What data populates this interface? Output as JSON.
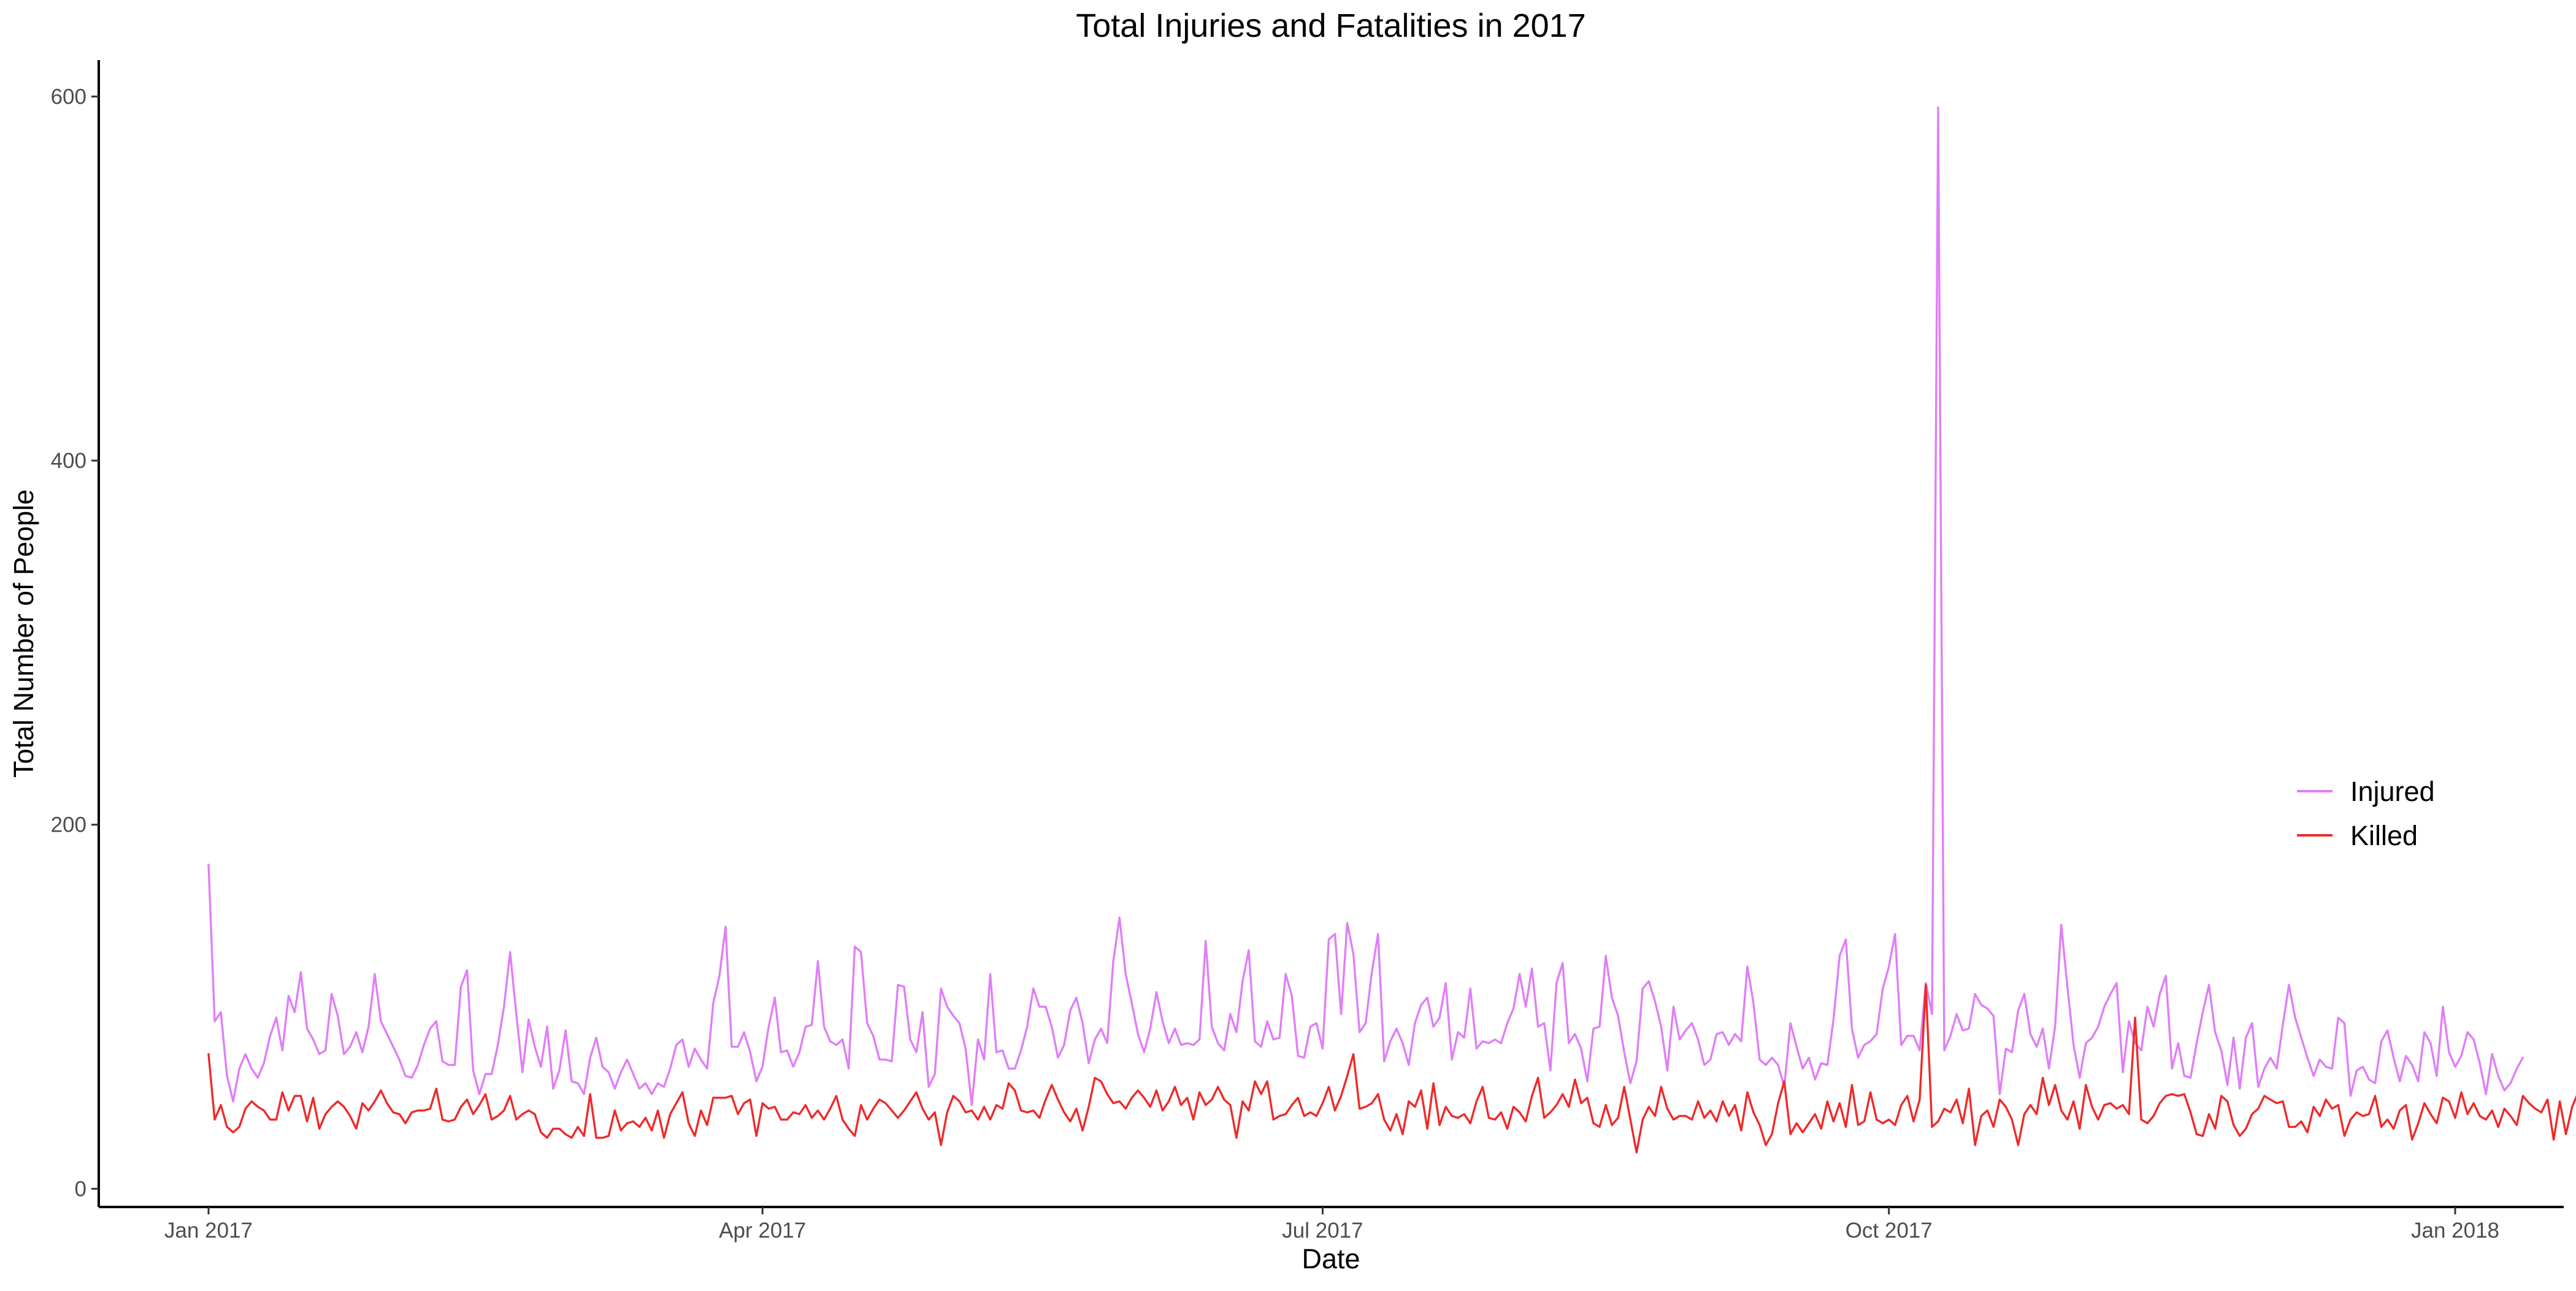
{
  "chart_data": {
    "type": "line",
    "title": "Total Injuries and Fatalities in 2017",
    "xlabel": "Date",
    "ylabel": "Total Number of People",
    "x_axis": {
      "type": "date",
      "range": [
        "2017-01-01",
        "2018-01-01"
      ],
      "ticks": [
        {
          "value": "2017-01-01",
          "label": "Jan 2017"
        },
        {
          "value": "2017-04-01",
          "label": "Apr 2017"
        },
        {
          "value": "2017-07-01",
          "label": "Jul 2017"
        },
        {
          "value": "2017-10-01",
          "label": "Oct 2017"
        },
        {
          "value": "2018-01-01",
          "label": "Jan 2018"
        }
      ]
    },
    "y_axis": {
      "range": [
        -10,
        620
      ],
      "ticks": [
        {
          "value": 0,
          "label": "0"
        },
        {
          "value": 200,
          "label": "200"
        },
        {
          "value": 400,
          "label": "400"
        },
        {
          "value": 600,
          "label": "600"
        }
      ]
    },
    "grid": false,
    "legend_position": "right",
    "x_start": "2017-01-01",
    "series": [
      {
        "name": "Injured",
        "color": "#e07ef7",
        "values": [
          178,
          92,
          97,
          62,
          48,
          66,
          74,
          66,
          61,
          69,
          84,
          94,
          76,
          106,
          97,
          119,
          88,
          82,
          74,
          76,
          107,
          95,
          74,
          78,
          86,
          75,
          89,
          118,
          92,
          85,
          78,
          71,
          62,
          61,
          68,
          79,
          88,
          92,
          70,
          68,
          68,
          111,
          120,
          65,
          52,
          63,
          63,
          79,
          100,
          130,
          96,
          64,
          93,
          78,
          67,
          89,
          55,
          65,
          87,
          59,
          58,
          52,
          72,
          83,
          67,
          64,
          55,
          64,
          71,
          63,
          55,
          58,
          52,
          58,
          56,
          66,
          79,
          82,
          67,
          77,
          71,
          66,
          102,
          117,
          144,
          78,
          78,
          86,
          75,
          59,
          67,
          89,
          105,
          75,
          76,
          67,
          75,
          89,
          90,
          125,
          89,
          81,
          79,
          82,
          66,
          133,
          130,
          91,
          84,
          71,
          71,
          70,
          112,
          111,
          82,
          75,
          97,
          56,
          63,
          110,
          100,
          95,
          91,
          77,
          46,
          82,
          71,
          118,
          75,
          76,
          66,
          66,
          76,
          89,
          110,
          100,
          100,
          89,
          72,
          79,
          98,
          105,
          91,
          69,
          82,
          88,
          80,
          125,
          149,
          118,
          102,
          85,
          75,
          88,
          108,
          92,
          80,
          88,
          79,
          80,
          79,
          82,
          136,
          89,
          80,
          76,
          96,
          86,
          114,
          131,
          81,
          78,
          92,
          82,
          83,
          118,
          106,
          73,
          72,
          89,
          91,
          77,
          137,
          140,
          96,
          146,
          129,
          86,
          91,
          119,
          140,
          70,
          81,
          88,
          80,
          68,
          91,
          101,
          105,
          89,
          94,
          113,
          71,
          86,
          83,
          110,
          77,
          81,
          80,
          82,
          80,
          91,
          99,
          118,
          100,
          121,
          89,
          91,
          65,
          113,
          124,
          80,
          85,
          77,
          59,
          88,
          89,
          128,
          105,
          95,
          75,
          58,
          70,
          110,
          114,
          103,
          89,
          65,
          100,
          82,
          87,
          91,
          82,
          68,
          71,
          85,
          86,
          79,
          85,
          81,
          122,
          102,
          71,
          68,
          72,
          68,
          56,
          91,
          78,
          66,
          72,
          60,
          69,
          68,
          93,
          128,
          137,
          88,
          72,
          79,
          81,
          85,
          110,
          122,
          140,
          79,
          84,
          84,
          76,
          113,
          96,
          594,
          76,
          84,
          96,
          87,
          88,
          107,
          101,
          99,
          95,
          52,
          77,
          75,
          98,
          107,
          85,
          78,
          88,
          66,
          89,
          145,
          111,
          79,
          61,
          80,
          83,
          89,
          100,
          107,
          113,
          64,
          92,
          80,
          76,
          100,
          89,
          107,
          117,
          66,
          80,
          62,
          61,
          80,
          97,
          112,
          86,
          76,
          57,
          83,
          55,
          83,
          91,
          56,
          66,
          72,
          66,
          90,
          112,
          94,
          83,
          72,
          62,
          71,
          67,
          66,
          94,
          91,
          51,
          65,
          67,
          60,
          58,
          81,
          87,
          72,
          59,
          73,
          68,
          59,
          86,
          80,
          62,
          100,
          75,
          67,
          73,
          86,
          82,
          69,
          52,
          74,
          62,
          54,
          58,
          66,
          72
        ],
        "values_note": "one value per day, ordered from 2017-01-01 with a constant daily step; values are read off the chart visually"
      },
      {
        "name": "Killed",
        "color": "#ee2a2a",
        "values": [
          74,
          38,
          46,
          34,
          31,
          34,
          44,
          48,
          45,
          43,
          38,
          38,
          53,
          43,
          51,
          51,
          37,
          50,
          33,
          41,
          45,
          48,
          45,
          40,
          33,
          47,
          43,
          48,
          54,
          47,
          42,
          41,
          36,
          42,
          43,
          43,
          44,
          55,
          38,
          37,
          38,
          45,
          49,
          41,
          46,
          52,
          38,
          40,
          43,
          51,
          38,
          41,
          43,
          41,
          31,
          28,
          33,
          33,
          30,
          28,
          34,
          29,
          52,
          28,
          28,
          29,
          43,
          32,
          36,
          37,
          34,
          39,
          32,
          43,
          28,
          41,
          47,
          53,
          36,
          29,
          43,
          35,
          50,
          50,
          50,
          51,
          41,
          47,
          49,
          29,
          47,
          44,
          45,
          38,
          38,
          42,
          41,
          46,
          39,
          43,
          38,
          44,
          51,
          38,
          33,
          29,
          46,
          38,
          44,
          49,
          47,
          43,
          39,
          43,
          48,
          53,
          44,
          38,
          42,
          24,
          42,
          51,
          48,
          42,
          43,
          38,
          45,
          38,
          46,
          44,
          58,
          54,
          43,
          42,
          43,
          39,
          49,
          57,
          49,
          42,
          37,
          44,
          32,
          45,
          61,
          59,
          52,
          47,
          48,
          44,
          50,
          54,
          50,
          45,
          54,
          43,
          48,
          56,
          46,
          50,
          38,
          53,
          46,
          49,
          56,
          49,
          46,
          28,
          48,
          43,
          59,
          52,
          59,
          38,
          40,
          41,
          46,
          50,
          40,
          42,
          40,
          47,
          56,
          43,
          51,
          62,
          74,
          44,
          45,
          47,
          52,
          38,
          32,
          41,
          30,
          48,
          45,
          54,
          33,
          58,
          35,
          45,
          40,
          39,
          41,
          36,
          48,
          56,
          39,
          38,
          42,
          33,
          45,
          42,
          37,
          51,
          61,
          39,
          42,
          46,
          52,
          45,
          60,
          47,
          50,
          36,
          34,
          46,
          35,
          39,
          56,
          38,
          20,
          38,
          45,
          40,
          56,
          44,
          38,
          40,
          40,
          38,
          48,
          39,
          43,
          37,
          48,
          40,
          46,
          32,
          53,
          42,
          35,
          24,
          30,
          47,
          59,
          30,
          36,
          31,
          36,
          41,
          33,
          48,
          37,
          47,
          34,
          57,
          35,
          37,
          53,
          38,
          36,
          38,
          35,
          46,
          51,
          37,
          49,
          112,
          34,
          37,
          44,
          42,
          49,
          36,
          55,
          24,
          40,
          43,
          34,
          49,
          45,
          38,
          24,
          41,
          46,
          41,
          61,
          46,
          57,
          43,
          38,
          48,
          33,
          57,
          45,
          38,
          46,
          47,
          44,
          46,
          41,
          94,
          38,
          36,
          40,
          47,
          51,
          52,
          51,
          52,
          42,
          30,
          29,
          41,
          33,
          51,
          48,
          35,
          29,
          33,
          41,
          44,
          51,
          49,
          47,
          48,
          34,
          34,
          37,
          31,
          45,
          40,
          49,
          44,
          46,
          29,
          38,
          42,
          40,
          41,
          51,
          34,
          38,
          33,
          43,
          46,
          27,
          36,
          47,
          41,
          36,
          50,
          48,
          39,
          53,
          41,
          47,
          40,
          38,
          43,
          34,
          44,
          40,
          35,
          51,
          47,
          44,
          42,
          49,
          27,
          48,
          30,
          45,
          53,
          46
        ]
      }
    ]
  }
}
